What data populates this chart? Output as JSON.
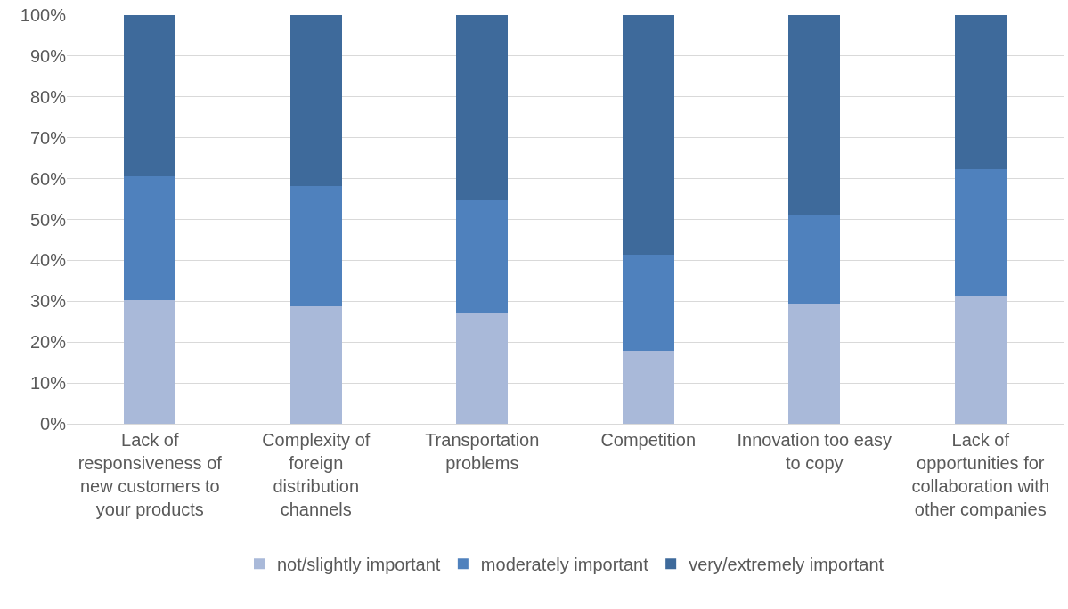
{
  "chart_data": {
    "type": "bar",
    "stacked": true,
    "categories": [
      "Lack of responsiveness of new customers to your products",
      "Complexity of foreign distribution channels",
      "Transportation problems",
      "Competition",
      "Innovation too easy to copy",
      "Lack of opportunities for collaboration with other companies"
    ],
    "series": [
      {
        "name": "not/slightly important",
        "color": "#a9b9d9",
        "values": [
          30.3,
          28.8,
          27.0,
          17.9,
          29.4,
          31.2
        ]
      },
      {
        "name": "moderately important",
        "color": "#4f81bd",
        "values": [
          30.3,
          29.4,
          27.7,
          23.5,
          21.8,
          31.1
        ]
      },
      {
        "name": "very/extremely important",
        "color": "#3e6a9b",
        "values": [
          39.4,
          41.8,
          45.3,
          58.6,
          48.8,
          37.7
        ]
      }
    ],
    "ylim": [
      0,
      100
    ],
    "yticks": [
      {
        "value": 0,
        "label": "0%"
      },
      {
        "value": 10,
        "label": "10%"
      },
      {
        "value": 20,
        "label": "20%"
      },
      {
        "value": 30,
        "label": "30%"
      },
      {
        "value": 40,
        "label": "40%"
      },
      {
        "value": 50,
        "label": "50%"
      },
      {
        "value": 60,
        "label": "60%"
      },
      {
        "value": 70,
        "label": "70%"
      },
      {
        "value": 80,
        "label": "80%"
      },
      {
        "value": 90,
        "label": "90%"
      },
      {
        "value": 100,
        "label": "100%"
      }
    ],
    "grid": "y",
    "legend": "bottom"
  }
}
